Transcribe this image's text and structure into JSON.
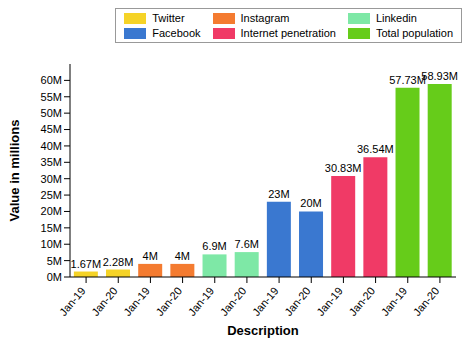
{
  "chart_data": {
    "type": "bar",
    "x_label": "Description",
    "y_label": "Value in millions",
    "categories": [
      "Jan-19",
      "Jan-20",
      "Jan-19",
      "Jan-20",
      "Jan-19",
      "Jan-20",
      "Jan-19",
      "Jan-20",
      "Jan-19",
      "Jan-20",
      "Jan-19",
      "Jan-20"
    ],
    "series": [
      {
        "name": "Twitter",
        "color": "#f5d327",
        "values": [
          1.67,
          2.28,
          null,
          null,
          null,
          null,
          null,
          null,
          null,
          null,
          null,
          null
        ],
        "value_labels": [
          "1.67M",
          "2.28M",
          null,
          null,
          null,
          null,
          null,
          null,
          null,
          null,
          null,
          null
        ]
      },
      {
        "name": "Instagram",
        "color": "#f47b30",
        "values": [
          null,
          null,
          4,
          4,
          null,
          null,
          null,
          null,
          null,
          null,
          null,
          null
        ],
        "value_labels": [
          null,
          null,
          "4M",
          "4M",
          null,
          null,
          null,
          null,
          null,
          null,
          null,
          null
        ]
      },
      {
        "name": "Linkedin",
        "color": "#7ee8a6",
        "values": [
          null,
          null,
          null,
          null,
          6.9,
          7.6,
          null,
          null,
          null,
          null,
          null,
          null
        ],
        "value_labels": [
          null,
          null,
          null,
          null,
          "6.9M",
          "7.6M",
          null,
          null,
          null,
          null,
          null,
          null
        ]
      },
      {
        "name": "Facebook",
        "color": "#3a78d0",
        "values": [
          null,
          null,
          null,
          null,
          null,
          null,
          23,
          20,
          null,
          null,
          null,
          null
        ],
        "value_labels": [
          null,
          null,
          null,
          null,
          null,
          null,
          "23M",
          "20M",
          null,
          null,
          null,
          null
        ]
      },
      {
        "name": "Internet penetration",
        "color": "#f03a66",
        "values": [
          null,
          null,
          null,
          null,
          null,
          null,
          null,
          null,
          30.83,
          36.54,
          null,
          null
        ],
        "value_labels": [
          null,
          null,
          null,
          null,
          null,
          null,
          null,
          null,
          "30.83M",
          "36.54M",
          null,
          null
        ]
      },
      {
        "name": "Total population",
        "color": "#66cc1a",
        "values": [
          null,
          null,
          null,
          null,
          null,
          null,
          null,
          null,
          null,
          null,
          57.73,
          58.93
        ],
        "value_labels": [
          null,
          null,
          null,
          null,
          null,
          null,
          null,
          null,
          null,
          null,
          "57.73M",
          "58.93M"
        ]
      }
    ],
    "ylim": [
      0,
      65
    ],
    "yticks": [
      {
        "value": 0,
        "label": "0M"
      },
      {
        "value": 5,
        "label": "5M"
      },
      {
        "value": 10,
        "label": "10M"
      },
      {
        "value": 15,
        "label": "15M"
      },
      {
        "value": 20,
        "label": "20M"
      },
      {
        "value": 25,
        "label": "25M"
      },
      {
        "value": 30,
        "label": "30M"
      },
      {
        "value": 35,
        "label": "35M"
      },
      {
        "value": 40,
        "label": "40M"
      },
      {
        "value": 45,
        "label": "45M"
      },
      {
        "value": 50,
        "label": "50M"
      },
      {
        "value": 55,
        "label": "55M"
      },
      {
        "value": 60,
        "label": "60M"
      }
    ],
    "legend": "upper right",
    "data_labels": true,
    "grid": false
  }
}
